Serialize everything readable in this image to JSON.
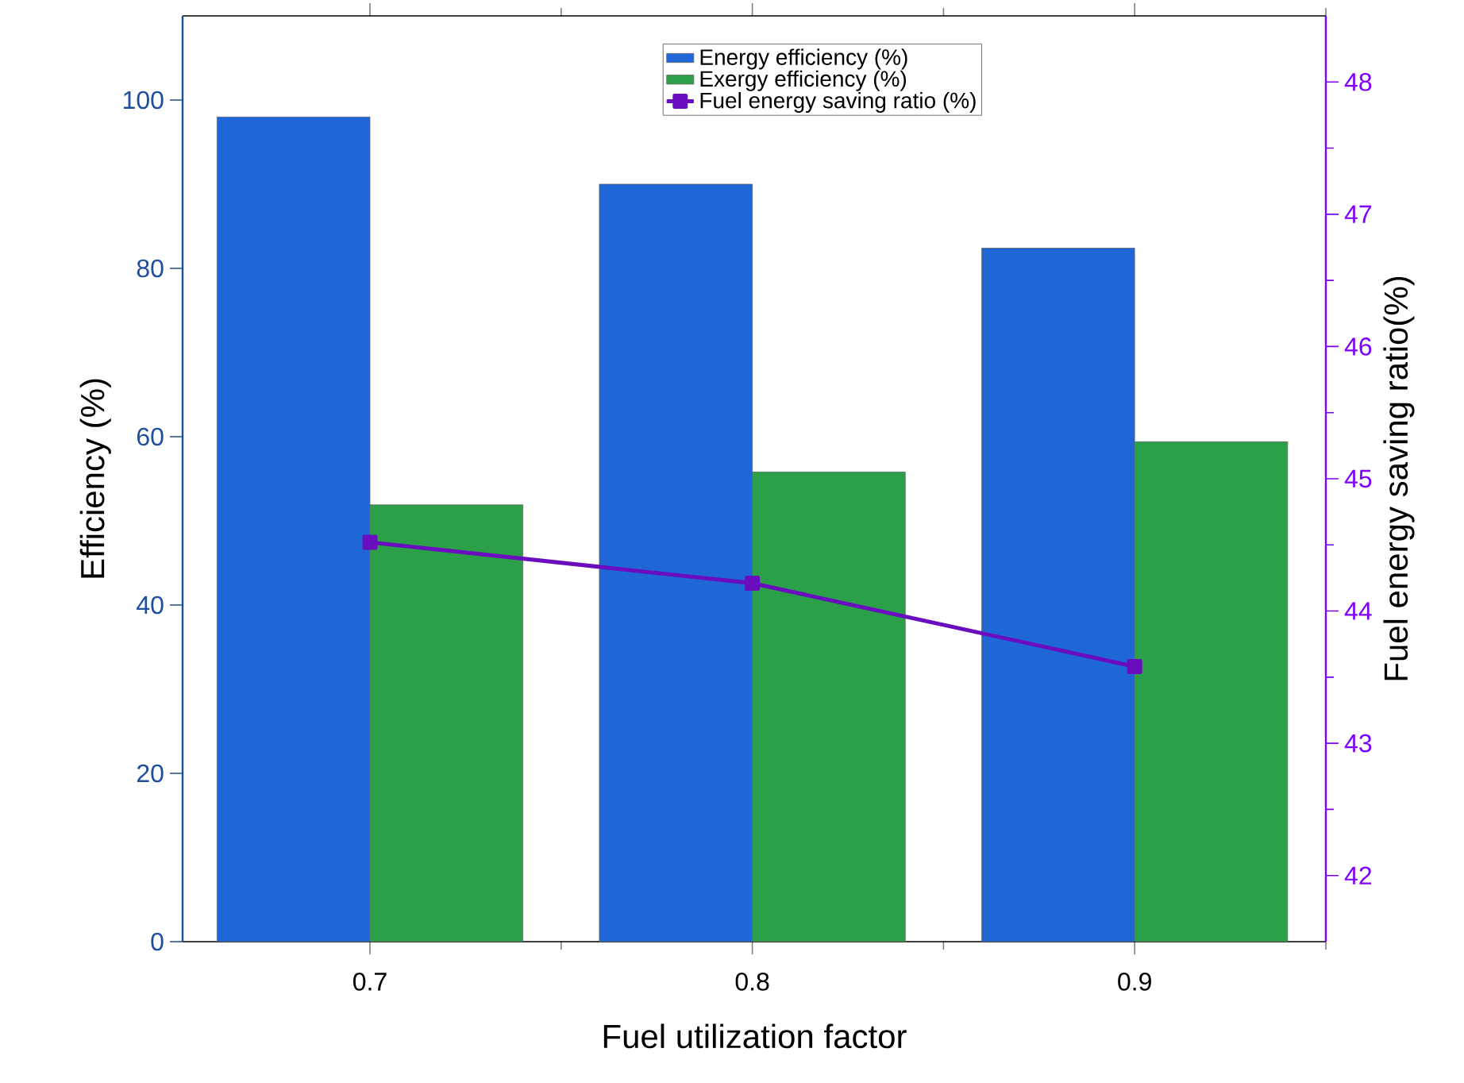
{
  "chart_data": {
    "type": "bar",
    "xlabel": "Fuel utilization factor",
    "ylabel": "Efficiency (%)",
    "y2label": "Fuel energy saving ratio(%)",
    "categories": [
      "0.7",
      "0.8",
      "0.9"
    ],
    "series": [
      {
        "name": "Energy efficiency (%)",
        "color": "#1f66d6",
        "values": [
          98,
          90,
          82.4
        ]
      },
      {
        "name": "Exergy efficiency (%)",
        "color": "#2ca048",
        "values": [
          51.9,
          55.8,
          59.4
        ]
      },
      {
        "name": "Fuel energy saving ratio (%)",
        "type": "line",
        "axis": "y2",
        "color": "#6a0dbf",
        "marker": "square",
        "values": [
          44.52,
          44.21,
          43.58
        ]
      }
    ],
    "ylim": [
      0,
      110
    ],
    "yticks": [
      0,
      20,
      40,
      60,
      80,
      100
    ],
    "y2lim": [
      41.5,
      48.5
    ],
    "y2ticks": [
      42,
      43,
      44,
      45,
      46,
      47,
      48
    ],
    "legend": "top right"
  }
}
